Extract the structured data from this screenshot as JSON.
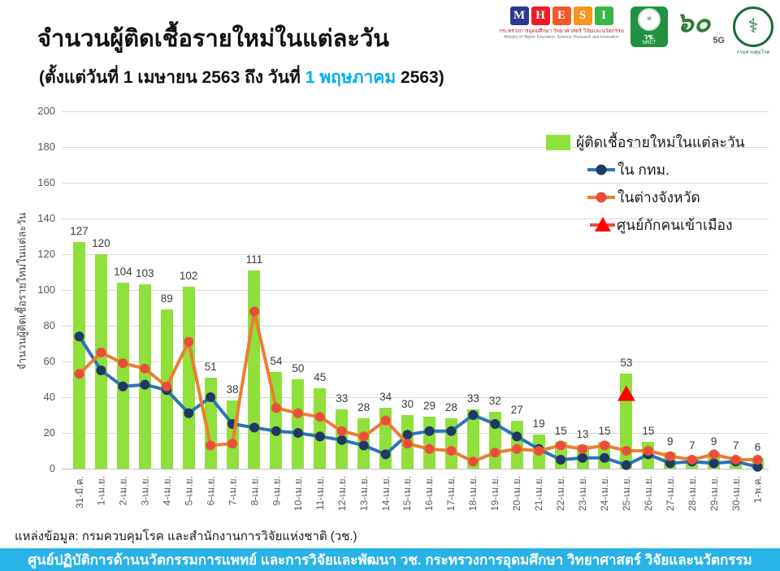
{
  "header": {
    "title": "จำนวนผู้ติดเชื้อรายใหม่ในแต่ละวัน",
    "subtitle_prefix": "(ตั้งแต่วันที่ 1 เมษายน 2563 ถึง วันที่ ",
    "subtitle_highlight": "1 พฤษภาคม",
    "subtitle_suffix": " 2563)",
    "logos": {
      "mhesi": [
        {
          "letter": "M",
          "color": "#2b3990"
        },
        {
          "letter": "H",
          "color": "#ed1c24"
        },
        {
          "letter": "E",
          "color": "#f15a29"
        },
        {
          "letter": "S",
          "color": "#f7941d"
        },
        {
          "letter": "I",
          "color": "#39b54a"
        }
      ],
      "mhesi_line1": "กระทรวงการอุดมศึกษา วิทยาศาสตร์ วิจัยและนวัตกรรม",
      "mhesi_line2": "Ministry of Higher Education, Science, Research and Innovation",
      "nrct_short": "วช.",
      "nrct_en": "NRCT",
      "sixty_number": "๖๐",
      "sixty_sub": "5G",
      "ddc_symbol": "⚕",
      "ddc_label": "กรมควบคุมโรค"
    }
  },
  "colors": {
    "accent_cyan": "#00aeef",
    "banner_bg": "#29b2e5",
    "bar_green": "#8fe03a",
    "line_bkk": "#2e74b5",
    "marker_bkk": "#1f3864",
    "line_provinces": "#ed7d31",
    "marker_provinces": "#ec4d3b",
    "triangle_red": "#ff0000",
    "grid": "#d9d9d9",
    "axis": "#bfbfbf",
    "tick_text": "#595959"
  },
  "chart_data": {
    "type": "bar",
    "title": "จำนวนผู้ติดเชื้อรายใหม่ในแต่ละวัน",
    "ylabel": "จำนวนผู้ติดเชื้อรายใหม่ในแต่ละวัน",
    "xlabel": "",
    "ylim": [
      0,
      200
    ],
    "ytick_step": 20,
    "grid": true,
    "legend_position": "top-right",
    "categories": [
      "31-มี.ค.",
      "1-เม.ย.",
      "2-เม.ย.",
      "3-เม.ย.",
      "4-เม.ย.",
      "5-เม.ย.",
      "6-เม.ย.",
      "7-เม.ย.",
      "8-เม.ย.",
      "9-เม.ย.",
      "10-เม.ย.",
      "11-เม.ย.",
      "12-เม.ย.",
      "13-เม.ย.",
      "14-เม.ย.",
      "15-เม.ย.",
      "16-เม.ย.",
      "17-เม.ย.",
      "18-เม.ย.",
      "19-เม.ย.",
      "20-เม.ย.",
      "21-เม.ย.",
      "22-เม.ย.",
      "23-เม.ย.",
      "24-เม.ย.",
      "25-เม.ย.",
      "26-เม.ย.",
      "27-เม.ย.",
      "28-เม.ย.",
      "29-เม.ย.",
      "30-เม.ย.",
      "1-พ.ค."
    ],
    "bars": {
      "name": "ผู้ติดเชื้อรายใหม่ในแต่ละวัน",
      "values": [
        127,
        120,
        104,
        103,
        89,
        102,
        51,
        38,
        111,
        54,
        50,
        45,
        33,
        28,
        34,
        30,
        29,
        28,
        33,
        32,
        27,
        19,
        15,
        13,
        15,
        53,
        15,
        9,
        7,
        9,
        7,
        6
      ],
      "labels_shown": true
    },
    "series": [
      {
        "name": "ใน กทม.",
        "type": "line",
        "values": [
          74,
          55,
          46,
          47,
          44,
          31,
          40,
          25,
          23,
          21,
          20,
          18,
          16,
          13,
          8,
          19,
          21,
          21,
          30,
          25,
          18,
          11,
          5,
          6,
          6,
          2,
          8,
          3,
          4,
          3,
          4,
          1
        ]
      },
      {
        "name": "ในต่างจังหวัด",
        "type": "line",
        "values": [
          53,
          65,
          59,
          56,
          46,
          71,
          13,
          14,
          88,
          34,
          31,
          29,
          21,
          18,
          27,
          14,
          11,
          10,
          4,
          9,
          11,
          10,
          13,
          11,
          13,
          10,
          10,
          7,
          5,
          8,
          5,
          5
        ]
      },
      {
        "name": "ศูนย์กักคนเข้าเมือง",
        "type": "triangle-point",
        "points": [
          {
            "category": "25-เม.ย.",
            "index": 25,
            "value": 42
          }
        ]
      }
    ]
  },
  "footer": {
    "source": "แหล่งข้อมูล: กรมควบคุมโรค และสำนักงานการวิจัยแห่งชาติ (วช.)",
    "banner": "ศูนย์ปฏิบัติการด้านนวัตกรรมการแพทย์ และการวิจัยและพัฒนา วช.   กระทรวงการอุดมศึกษา วิทยาศาสตร์ วิจัยและนวัตกรรม"
  }
}
